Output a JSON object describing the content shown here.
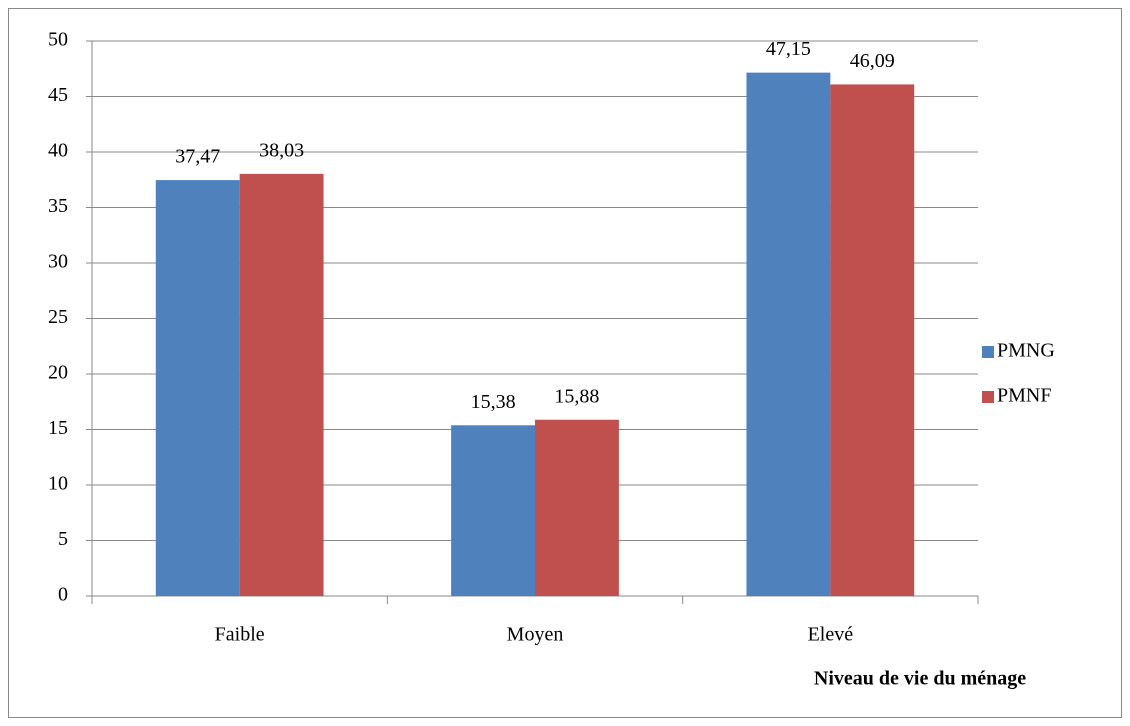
{
  "chart_data": {
    "type": "bar",
    "x_label": "Niveau de vie du ménage",
    "categories": [
      "Faible",
      "Moyen",
      "Elevé"
    ],
    "series": [
      {
        "name": "PMNG",
        "color": "#4f81bd",
        "values": [
          37.47,
          15.38,
          47.15
        ],
        "value_labels": [
          "37,47",
          "15,38",
          "47,15"
        ]
      },
      {
        "name": "PMNF",
        "color": "#c0504d",
        "values": [
          38.03,
          15.88,
          46.09
        ],
        "value_labels": [
          "38,03",
          "15,88",
          "46,09"
        ]
      }
    ],
    "ylim": [
      0,
      50
    ],
    "yticks": [
      0,
      5,
      10,
      15,
      20,
      25,
      30,
      35,
      40,
      45,
      50
    ],
    "grid": true,
    "legend": "right"
  }
}
